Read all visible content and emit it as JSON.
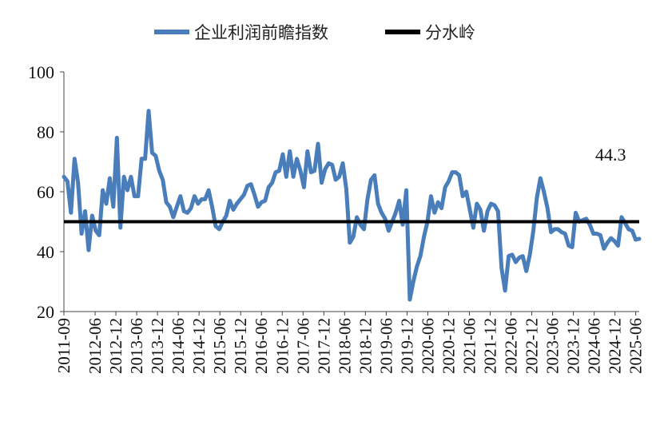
{
  "chart_data": {
    "type": "line",
    "legend": {
      "position": "top",
      "items": [
        {
          "label": "企业利润前瞻指数",
          "color": "#4a7ebb"
        },
        {
          "label": "分水岭",
          "color": "#000000"
        }
      ]
    },
    "ylim": [
      20,
      100
    ],
    "yticks": [
      "20",
      "40",
      "60",
      "80",
      "100"
    ],
    "xticks": [
      "2011-09",
      "2012-06",
      "2012-12",
      "2013-06",
      "2013-12",
      "2014-06",
      "2014-12",
      "2015-06",
      "2015-12",
      "2016-06",
      "2016-12",
      "2017-06",
      "2017-12",
      "2018-06",
      "2018-12",
      "2019-06",
      "2019-12",
      "2020-06",
      "2020-12",
      "2021-06",
      "2021-12",
      "2022-06",
      "2022-12",
      "2023-06",
      "2023-12",
      "2024-06",
      "2024-12",
      "2025-06"
    ],
    "x_start": "2011-09",
    "x_end": "2025-07",
    "grid": false,
    "annotation": "44.3",
    "series": [
      {
        "name": "企业利润前瞻指数",
        "color": "#4a7ebb",
        "values": [
          65,
          63.5,
          53,
          71,
          63,
          46,
          53.5,
          40.5,
          52,
          47,
          45.5,
          60.5,
          56,
          64.5,
          55,
          78,
          48,
          65,
          60.5,
          65,
          58.5,
          58.5,
          71,
          71,
          87,
          73,
          72,
          67,
          64,
          56.5,
          55,
          51.5,
          55,
          58.5,
          53.5,
          53,
          54.5,
          58.5,
          56,
          57.5,
          57.5,
          60.5,
          55,
          48.5,
          47.5,
          50,
          52,
          57,
          54,
          56,
          57.5,
          59,
          62,
          62.5,
          59,
          55,
          56.5,
          57,
          61.5,
          63,
          66.5,
          67,
          72.5,
          65,
          73.5,
          65,
          71,
          67,
          61.5,
          73.5,
          66.5,
          67,
          76,
          63,
          67.5,
          69.5,
          69,
          64,
          65,
          69.5,
          61,
          43,
          45,
          51.5,
          49,
          47.5,
          57.5,
          64,
          65.5,
          56,
          53,
          51,
          47,
          50,
          53,
          57,
          49,
          60.5,
          24,
          30,
          35,
          38.5,
          45,
          50,
          58.5,
          53,
          56.5,
          54.5,
          61.5,
          63.5,
          66.5,
          66.5,
          65.5,
          58.5,
          60,
          54,
          48,
          56,
          54,
          47,
          53.5,
          56,
          55.5,
          53.5,
          34.5,
          27,
          38.5,
          39,
          36.5,
          38,
          38.5,
          33.5,
          39,
          47,
          58,
          64.5,
          60,
          54.5,
          46.5,
          47.5,
          47.5,
          46.5,
          46,
          42,
          41.5,
          53,
          50,
          50.5,
          51,
          49,
          46,
          46,
          45.5,
          41,
          43,
          44.5,
          43.5,
          42,
          51.5,
          49.5,
          47.5,
          47,
          44,
          44.3
        ]
      },
      {
        "name": "分水岭",
        "color": "#000000",
        "values": [
          50,
          50
        ]
      }
    ]
  }
}
